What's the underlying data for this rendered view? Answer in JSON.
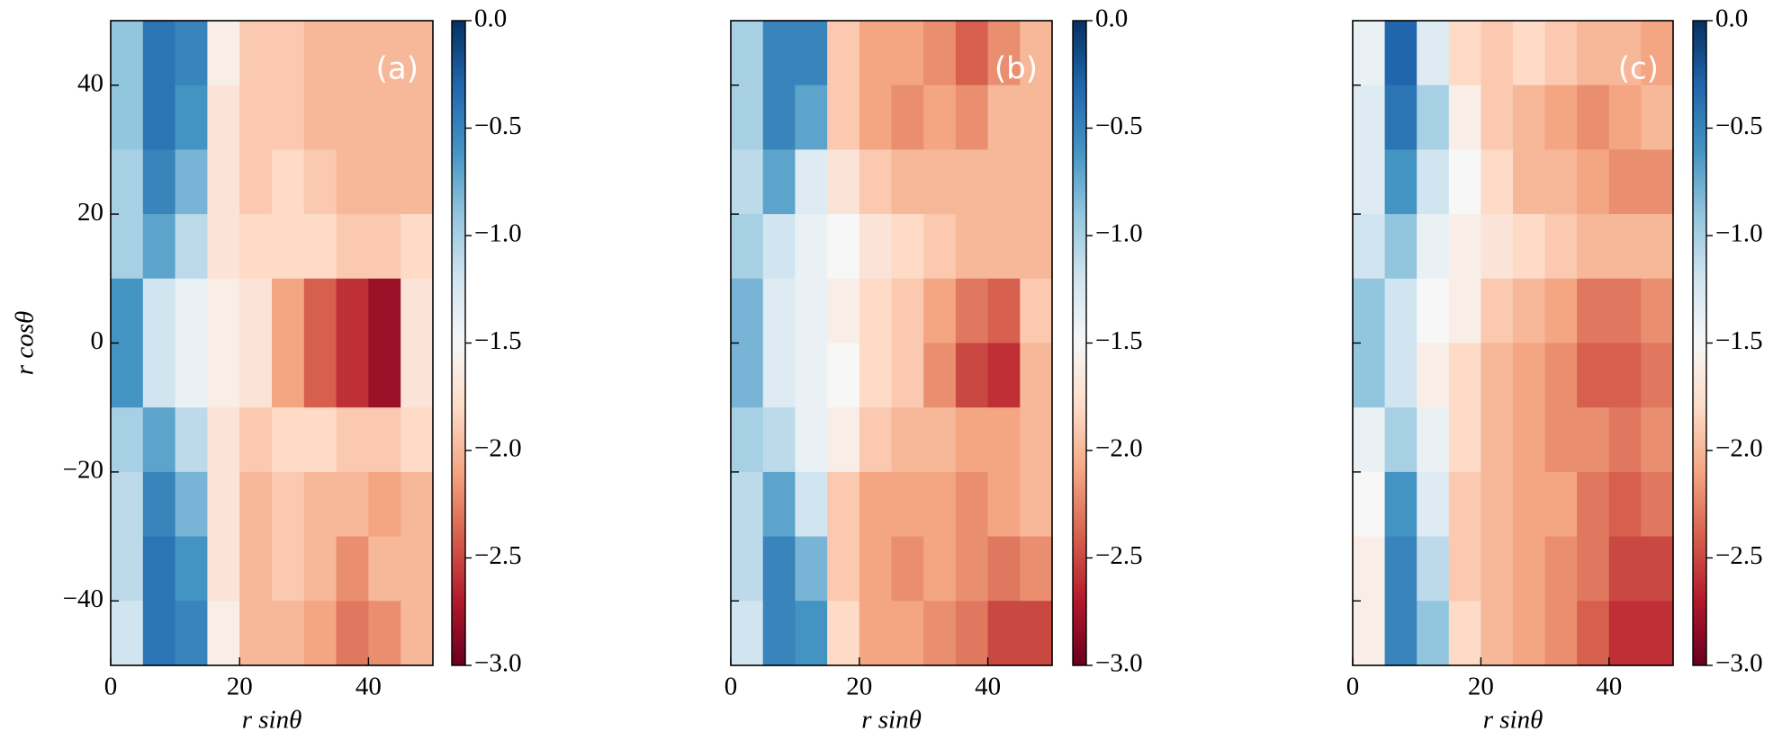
{
  "chart_data": [
    {
      "type": "heatmap",
      "label": "(a)",
      "xlabel": "r sinθ",
      "ylabel": "r cosθ",
      "xbins": [
        0,
        5,
        10,
        15,
        20,
        25,
        30,
        35,
        40,
        45,
        50
      ],
      "ybins": [
        50,
        40,
        30,
        20,
        10,
        0,
        -10,
        -20,
        -30,
        -40,
        -50
      ],
      "values": [
        [
          -0.9,
          -0.4,
          -0.5,
          -1.6,
          -1.9,
          -1.9,
          -2.0,
          -2.0,
          -2.0,
          -2.0
        ],
        [
          -0.9,
          -0.4,
          -0.6,
          -1.7,
          -1.9,
          -1.9,
          -2.0,
          -2.0,
          -2.0,
          -2.0
        ],
        [
          -1.0,
          -0.5,
          -0.8,
          -1.7,
          -1.9,
          -1.8,
          -1.9,
          -2.0,
          -2.0,
          -2.0
        ],
        [
          -1.0,
          -0.7,
          -1.1,
          -1.7,
          -1.8,
          -1.8,
          -1.8,
          -1.9,
          -1.9,
          -1.8
        ],
        [
          -0.6,
          -1.2,
          -1.4,
          -1.6,
          -1.7,
          -2.1,
          -2.4,
          -2.6,
          -2.8,
          -1.7
        ],
        [
          -0.6,
          -1.2,
          -1.4,
          -1.6,
          -1.7,
          -2.1,
          -2.4,
          -2.6,
          -2.8,
          -1.7
        ],
        [
          -1.0,
          -0.7,
          -1.1,
          -1.7,
          -1.9,
          -1.8,
          -1.8,
          -1.9,
          -1.9,
          -1.8
        ],
        [
          -1.1,
          -0.5,
          -0.8,
          -1.7,
          -2.0,
          -1.9,
          -2.0,
          -2.0,
          -2.1,
          -2.0
        ],
        [
          -1.1,
          -0.4,
          -0.6,
          -1.7,
          -2.0,
          -1.9,
          -2.0,
          -2.2,
          -2.0,
          -2.0
        ],
        [
          -1.2,
          -0.4,
          -0.5,
          -1.6,
          -2.0,
          -2.0,
          -2.1,
          -2.3,
          -2.2,
          -2.0
        ]
      ],
      "xlim": [
        0,
        50
      ],
      "ylim": [
        -50,
        50
      ],
      "xticks": [
        0,
        20,
        40
      ],
      "yticks": [
        {
          "value": -40,
          "label": "−40"
        },
        {
          "value": -20,
          "label": "−20"
        },
        0,
        20,
        40
      ],
      "ytick_labels": true,
      "clim": [
        -3,
        0
      ],
      "cticks": [
        {
          "value": -3,
          "label": "−3.0"
        },
        {
          "value": -2.5,
          "label": "−2.5"
        },
        {
          "value": -2,
          "label": "−2.0"
        },
        {
          "value": -1.5,
          "label": "−1.5"
        },
        {
          "value": -1,
          "label": "−1.0"
        },
        {
          "value": -0.5,
          "label": "−0.5"
        },
        {
          "value": 0,
          "label": "0.0"
        }
      ],
      "colormap": [
        "#67001f",
        "#b2182b",
        "#d6604d",
        "#f4a582",
        "#fddbc7",
        "#f7f7f7",
        "#d1e5f0",
        "#92c5de",
        "#4393c3",
        "#2166ac",
        "#053061"
      ]
    },
    {
      "type": "heatmap",
      "label": "(b)",
      "xlabel": "r sinθ",
      "xbins": [
        0,
        5,
        10,
        15,
        20,
        25,
        30,
        35,
        40,
        45,
        50
      ],
      "ybins": [
        50,
        40,
        30,
        20,
        10,
        0,
        -10,
        -20,
        -30,
        -40,
        -50
      ],
      "values": [
        [
          -1.0,
          -0.5,
          -0.5,
          -1.9,
          -2.1,
          -2.1,
          -2.2,
          -2.4,
          -2.2,
          -2.0
        ],
        [
          -1.0,
          -0.5,
          -0.7,
          -1.9,
          -2.1,
          -2.2,
          -2.1,
          -2.2,
          -2.0,
          -2.0
        ],
        [
          -1.1,
          -0.7,
          -1.3,
          -1.7,
          -1.9,
          -2.0,
          -2.0,
          -2.0,
          -2.0,
          -2.0
        ],
        [
          -1.0,
          -1.2,
          -1.4,
          -1.5,
          -1.7,
          -1.8,
          -1.9,
          -2.0,
          -2.0,
          -2.0
        ],
        [
          -0.8,
          -1.3,
          -1.4,
          -1.6,
          -1.8,
          -1.9,
          -2.1,
          -2.3,
          -2.4,
          -1.9
        ],
        [
          -0.8,
          -1.3,
          -1.4,
          -1.5,
          -1.8,
          -1.9,
          -2.2,
          -2.5,
          -2.6,
          -2.0
        ],
        [
          -1.0,
          -1.1,
          -1.4,
          -1.6,
          -1.9,
          -2.0,
          -2.0,
          -2.1,
          -2.1,
          -2.0
        ],
        [
          -1.1,
          -0.7,
          -1.2,
          -1.9,
          -2.1,
          -2.1,
          -2.1,
          -2.2,
          -2.1,
          -2.0
        ],
        [
          -1.1,
          -0.5,
          -0.8,
          -1.9,
          -2.1,
          -2.2,
          -2.1,
          -2.2,
          -2.3,
          -2.2
        ],
        [
          -1.2,
          -0.5,
          -0.6,
          -1.8,
          -2.1,
          -2.1,
          -2.2,
          -2.3,
          -2.5,
          -2.5
        ]
      ],
      "xlim": [
        0,
        50
      ],
      "ylim": [
        -50,
        50
      ],
      "xticks": [
        0,
        20,
        40
      ],
      "yticks": [
        -40,
        -20,
        0,
        20,
        40
      ],
      "ytick_labels": false,
      "clim": [
        -3,
        0
      ],
      "cticks": [
        {
          "value": -3,
          "label": "−3.0"
        },
        {
          "value": -2.5,
          "label": "−2.5"
        },
        {
          "value": -2,
          "label": "−2.0"
        },
        {
          "value": -1.5,
          "label": "−1.5"
        },
        {
          "value": -1,
          "label": "−1.0"
        },
        {
          "value": -0.5,
          "label": "−0.5"
        },
        {
          "value": 0,
          "label": "0.0"
        }
      ],
      "colormap": [
        "#67001f",
        "#b2182b",
        "#d6604d",
        "#f4a582",
        "#fddbc7",
        "#f7f7f7",
        "#d1e5f0",
        "#92c5de",
        "#4393c3",
        "#2166ac",
        "#053061"
      ]
    },
    {
      "type": "heatmap",
      "label": "(c)",
      "xlabel": "r sinθ",
      "xbins": [
        0,
        5,
        10,
        15,
        20,
        25,
        30,
        35,
        40,
        45,
        50
      ],
      "ybins": [
        50,
        40,
        30,
        20,
        10,
        0,
        -10,
        -20,
        -30,
        -40,
        -50
      ],
      "values": [
        [
          -1.4,
          -0.3,
          -1.3,
          -1.8,
          -1.9,
          -1.8,
          -1.9,
          -2.0,
          -2.0,
          -2.1
        ],
        [
          -1.3,
          -0.4,
          -1.0,
          -1.6,
          -1.9,
          -2.0,
          -2.1,
          -2.2,
          -2.1,
          -2.0
        ],
        [
          -1.3,
          -0.6,
          -1.2,
          -1.5,
          -1.8,
          -2.0,
          -2.0,
          -2.1,
          -2.2,
          -2.2
        ],
        [
          -1.2,
          -0.9,
          -1.4,
          -1.6,
          -1.7,
          -1.8,
          -1.9,
          -2.0,
          -2.0,
          -2.0
        ],
        [
          -0.9,
          -1.2,
          -1.5,
          -1.6,
          -1.9,
          -2.0,
          -2.1,
          -2.3,
          -2.3,
          -2.2
        ],
        [
          -0.9,
          -1.2,
          -1.6,
          -1.8,
          -2.0,
          -2.1,
          -2.2,
          -2.4,
          -2.4,
          -2.3
        ],
        [
          -1.4,
          -1.0,
          -1.4,
          -1.8,
          -2.0,
          -2.1,
          -2.2,
          -2.2,
          -2.3,
          -2.2
        ],
        [
          -1.5,
          -0.6,
          -1.3,
          -1.9,
          -2.0,
          -2.1,
          -2.1,
          -2.3,
          -2.4,
          -2.3
        ],
        [
          -1.6,
          -0.5,
          -1.1,
          -1.9,
          -2.0,
          -2.1,
          -2.2,
          -2.3,
          -2.5,
          -2.5
        ],
        [
          -1.6,
          -0.5,
          -0.9,
          -1.8,
          -2.0,
          -2.1,
          -2.2,
          -2.4,
          -2.6,
          -2.6
        ]
      ],
      "xlim": [
        0,
        50
      ],
      "ylim": [
        -50,
        50
      ],
      "xticks": [
        0,
        20,
        40
      ],
      "yticks": [
        -40,
        -20,
        0,
        20,
        40
      ],
      "ytick_labels": false,
      "clim": [
        -3,
        0
      ],
      "cticks": [
        {
          "value": -3,
          "label": "−3.0"
        },
        {
          "value": -2.5,
          "label": "−2.5"
        },
        {
          "value": -2,
          "label": "−2.0"
        },
        {
          "value": -1.5,
          "label": "−1.5"
        },
        {
          "value": -1,
          "label": "−1.0"
        },
        {
          "value": -0.5,
          "label": "−0.5"
        },
        {
          "value": 0,
          "label": "0.0"
        }
      ],
      "colormap": [
        "#67001f",
        "#b2182b",
        "#d6604d",
        "#f4a582",
        "#fddbc7",
        "#f7f7f7",
        "#d1e5f0",
        "#92c5de",
        "#4393c3",
        "#2166ac",
        "#053061"
      ]
    }
  ]
}
